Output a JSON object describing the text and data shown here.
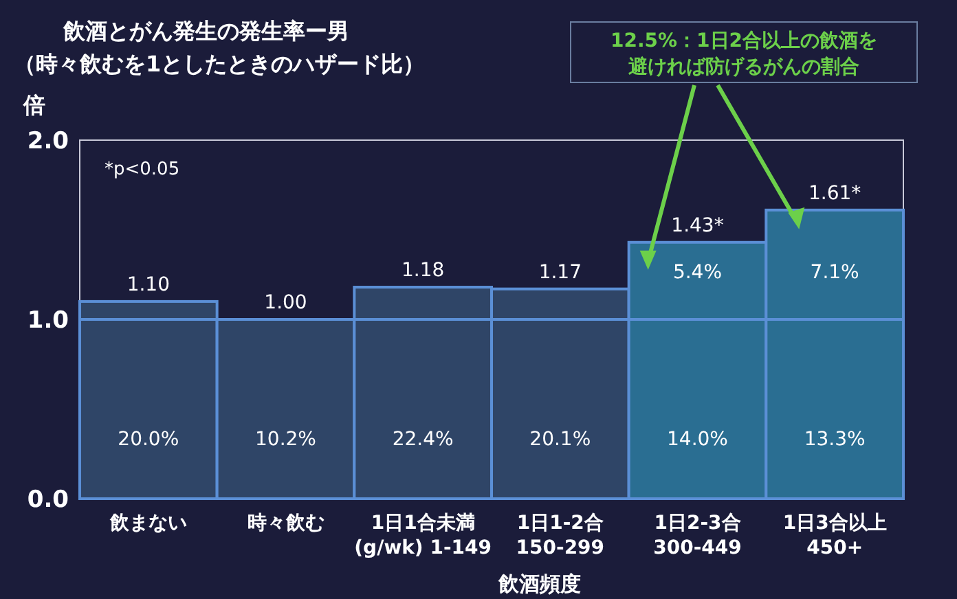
{
  "chart_data": {
    "type": "bar",
    "title": "飲酒とがん発生の発生率ー男",
    "subtitle": "（時々飲むを1としたときのハザード比）",
    "ylabel": "倍",
    "xlabel": "飲酒頻度",
    "categories": [
      "飲まない",
      "時々飲む",
      "1日1合未満\n(g/wk) 1-149",
      "1日1-2合\n150-299",
      "1日2-3合\n300-449",
      "1日3合以上\n450+"
    ],
    "values": [
      1.1,
      1.0,
      1.18,
      1.17,
      1.43,
      1.61
    ],
    "value_labels": [
      "1.10",
      "1.00",
      "1.18",
      "1.17",
      "1.43*",
      "1.61*"
    ],
    "colors": [
      "#2f4567",
      "#2f4567",
      "#2f4567",
      "#2f4567",
      "#2a6e92",
      "#2a6e92"
    ],
    "ylim": [
      0,
      2
    ],
    "yticks": [
      {
        "value": 0,
        "label": "0.0"
      },
      {
        "value": 1,
        "label": "1.0"
      },
      {
        "value": 2,
        "label": "2.0"
      }
    ],
    "ref_lines": [
      {
        "axis": "y",
        "value": 1,
        "color": "#5b8fd6"
      }
    ],
    "grid": false,
    "annotations": [
      {
        "text": "*p<0.05"
      },
      "12.5%：1日2合以上の飲酒を避ければ防げるがんの割合",
      "20.0%",
      "10.2%",
      "22.4%",
      "20.1%",
      "14.0%",
      "13.3%",
      "5.4%",
      "7.1%"
    ]
  }
}
